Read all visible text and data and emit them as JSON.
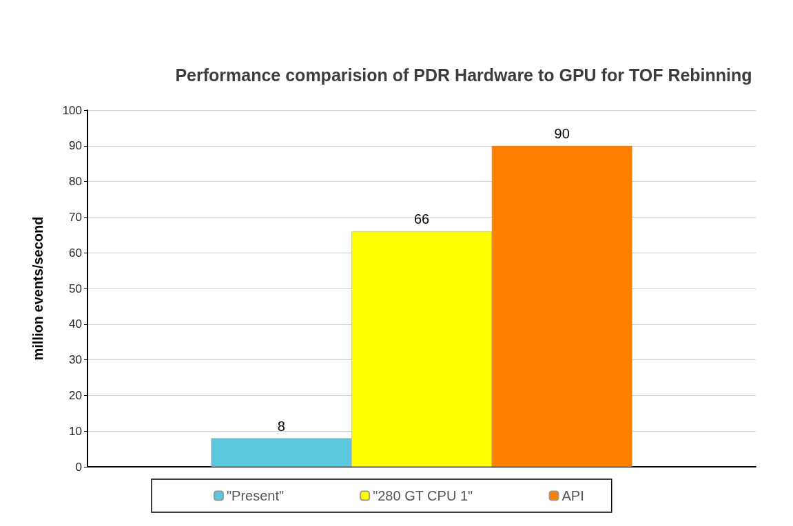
{
  "chart_data": {
    "type": "bar",
    "title": "Performance comparision of PDR Hardware to GPU for TOF Rebinning",
    "ylabel": "million events/second",
    "categories": [
      null
    ],
    "series": [
      {
        "name": "\"Present\"",
        "color": "#5cc8e0",
        "values": [
          8
        ]
      },
      {
        "name": "\"280 GT CPU 1\"",
        "color": "#ffff00",
        "values": [
          66
        ]
      },
      {
        "name": "API",
        "color": "#ff8000",
        "values": [
          90
        ]
      }
    ],
    "ylim": [
      0,
      100
    ],
    "yticks": [
      0,
      10,
      20,
      30,
      40,
      50,
      60,
      70,
      80,
      90,
      100
    ],
    "grid": "y",
    "legend": "bottom",
    "data_labels": true
  }
}
